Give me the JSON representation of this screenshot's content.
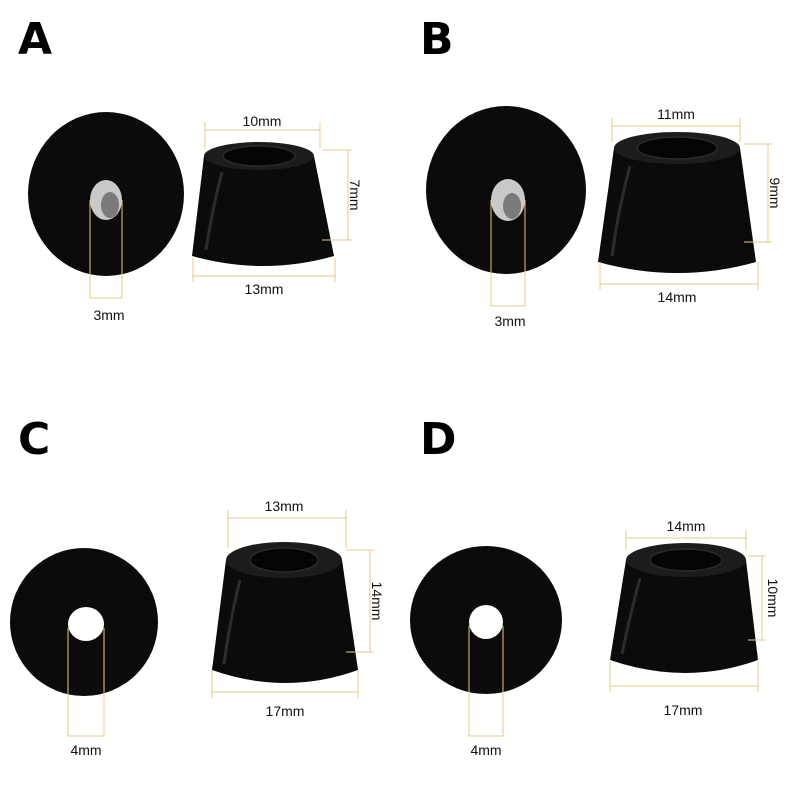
{
  "panels": [
    {
      "letter": "A",
      "hole_label": "3mm",
      "top_label": "10mm",
      "height_label": "7mm",
      "bottom_label": "13mm"
    },
    {
      "letter": "B",
      "hole_label": "3mm",
      "top_label": "11mm",
      "height_label": "9mm",
      "bottom_label": "14mm"
    },
    {
      "letter": "C",
      "hole_label": "4mm",
      "top_label": "13mm",
      "height_label": "14mm",
      "bottom_label": "17mm"
    },
    {
      "letter": "D",
      "hole_label": "4mm",
      "top_label": "14mm",
      "height_label": "10mm",
      "bottom_label": "17mm"
    }
  ],
  "colors": {
    "rubber": "#0b0b0b",
    "dimension_line": "#e6c98a",
    "text": "#111111"
  }
}
